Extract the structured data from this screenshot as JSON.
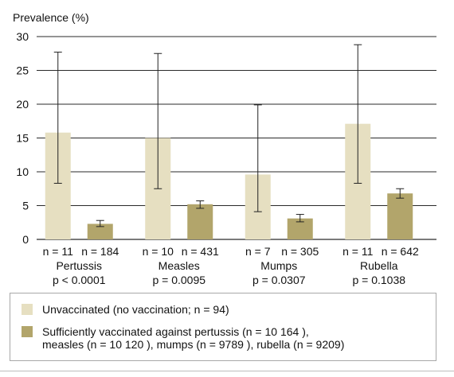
{
  "chart_data": {
    "type": "bar",
    "ylabel": "Prevalence (%)",
    "ylim": [
      0,
      30
    ],
    "yticks": [
      0,
      5,
      10,
      15,
      20,
      25,
      30
    ],
    "grid": true,
    "categories": [
      "Pertussis",
      "Measles",
      "Mumps",
      "Rubella"
    ],
    "p_values": [
      "p < 0.0001",
      "p = 0.0095",
      "p = 0.0307",
      "p = 0.1038"
    ],
    "series": [
      {
        "name": "Unvaccinated (no vaccination; n = 94)",
        "color": "#e6dfc1",
        "values": [
          15.8,
          15.0,
          9.6,
          17.1
        ],
        "error_low": [
          8.3,
          7.5,
          4.1,
          8.3
        ],
        "error_high": [
          27.7,
          27.5,
          19.9,
          28.8
        ],
        "n_labels": [
          "n = 11",
          "n = 10",
          "n = 7",
          "n = 11"
        ]
      },
      {
        "name": "Sufficiently vaccinated against pertussis (n = 10 164 ), measles (n = 10 120 ), mumps (n = 9789 ), rubella (n = 9209)",
        "color": "#b2a56b",
        "values": [
          2.3,
          5.2,
          3.1,
          6.8
        ],
        "error_low": [
          1.9,
          4.6,
          2.6,
          6.1
        ],
        "error_high": [
          2.8,
          5.7,
          3.7,
          7.5
        ],
        "n_labels": [
          "n = 184",
          "n = 431",
          "n = 305",
          "n = 642"
        ]
      }
    ]
  },
  "legend": {
    "item1": "Unvaccinated (no vaccination; n = 94)",
    "item2_line1": "Sufficiently vaccinated against pertussis (n = 10 164 ),",
    "item2_line2": "measles (n = 10 120 ), mumps (n = 9789 ), rubella (n = 9209)"
  },
  "colors": {
    "unvaccinated": "#e6dfc1",
    "vaccinated": "#b2a56b",
    "grid": "#2a2a2a"
  }
}
